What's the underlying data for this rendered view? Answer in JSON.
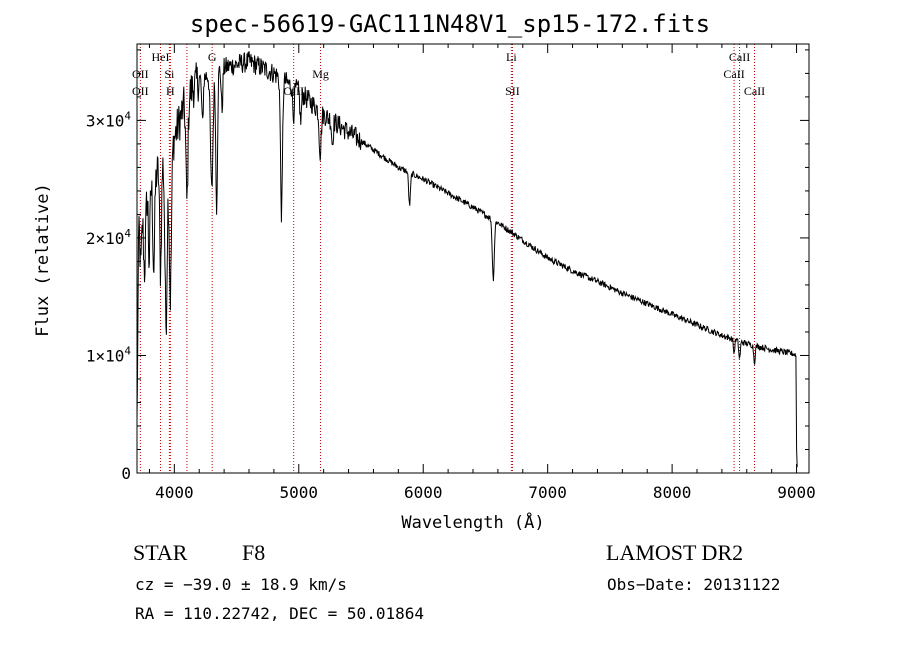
{
  "chart_data": {
    "type": "line",
    "title": "spec-56619-GAC111N48V1_sp15-172.fits",
    "xlabel": "Wavelength (Å)",
    "ylabel": "Flux (relative)",
    "xlim": [
      3700,
      9100
    ],
    "ylim": [
      0,
      36500
    ],
    "x_ticks": [
      4000,
      5000,
      6000,
      7000,
      8000,
      9000
    ],
    "x_tick_labels": [
      "4000",
      "5000",
      "6000",
      "7000",
      "8000",
      "9000"
    ],
    "y_ticks": [
      0,
      10000,
      20000,
      30000
    ],
    "y_tick_labels": [
      {
        "mant": "0",
        "exp": ""
      },
      {
        "mant": "1×10",
        "exp": "4"
      },
      {
        "mant": "2×10",
        "exp": "4"
      },
      {
        "mant": "3×10",
        "exp": "4"
      }
    ],
    "series": [
      {
        "name": "spectrum",
        "continuum": [
          [
            3700,
            22000
          ],
          [
            3800,
            24000
          ],
          [
            3900,
            26500
          ],
          [
            4000,
            28500
          ],
          [
            4100,
            32000
          ],
          [
            4200,
            33500
          ],
          [
            4400,
            34500
          ],
          [
            4600,
            35000
          ],
          [
            4800,
            34000
          ],
          [
            5000,
            32500
          ],
          [
            5200,
            30500
          ],
          [
            5400,
            29000
          ],
          [
            5600,
            27500
          ],
          [
            5800,
            26000
          ],
          [
            6000,
            25000
          ],
          [
            6200,
            23800
          ],
          [
            6400,
            22600
          ],
          [
            6600,
            21300
          ],
          [
            6800,
            19800
          ],
          [
            7000,
            18300
          ],
          [
            7200,
            17200
          ],
          [
            7400,
            16300
          ],
          [
            7600,
            15300
          ],
          [
            7800,
            14400
          ],
          [
            8000,
            13500
          ],
          [
            8200,
            12600
          ],
          [
            8400,
            11700
          ],
          [
            8600,
            11000
          ],
          [
            8800,
            10500
          ],
          [
            8990,
            10100
          ]
        ],
        "absorption_lines": [
          [
            3730,
            5000,
            8
          ],
          [
            3760,
            6000,
            8
          ],
          [
            3798,
            6000,
            6
          ],
          [
            3835,
            7500,
            7
          ],
          [
            3889,
            9000,
            7
          ],
          [
            3933,
            14500,
            9
          ],
          [
            3968,
            13000,
            9
          ],
          [
            4101,
            9000,
            8
          ],
          [
            4226,
            4000,
            6
          ],
          [
            4300,
            10000,
            10
          ],
          [
            4340,
            11500,
            7
          ],
          [
            4383,
            3500,
            6
          ],
          [
            4861,
            11500,
            8
          ],
          [
            4957,
            2500,
            6
          ],
          [
            5015,
            2500,
            6
          ],
          [
            5172,
            3500,
            8
          ],
          [
            5270,
            2000,
            6
          ],
          [
            5890,
            2800,
            7
          ],
          [
            6563,
            5000,
            8
          ],
          [
            8498,
            1200,
            5
          ],
          [
            8542,
            1500,
            6
          ],
          [
            8662,
            1400,
            6
          ]
        ],
        "end_drop": [
          [
            8995,
            10000
          ],
          [
            9000,
            2000
          ],
          [
            9005,
            500
          ]
        ]
      }
    ],
    "line_markers": [
      {
        "x": 3727,
        "label": "OII",
        "row": 2
      },
      {
        "x": 3727,
        "label": "OII",
        "row": 3
      },
      {
        "x": 3889,
        "label": "HeI",
        "row": 1
      },
      {
        "x": 3968,
        "label": "H",
        "row": 3
      },
      {
        "x": 3960,
        "label": "Si",
        "row": 2
      },
      {
        "x": 4101,
        "label": "",
        "row": 0
      },
      {
        "x": 4304,
        "label": "G",
        "row": 1
      },
      {
        "x": 4959,
        "label": "OIII",
        "row": 3
      },
      {
        "x": 5175,
        "label": "Mg",
        "row": 2
      },
      {
        "x": 6708,
        "label": "Li",
        "row": 1
      },
      {
        "x": 6717,
        "label": "SII",
        "row": 3
      },
      {
        "x": 8498,
        "label": "CaII",
        "row": 2
      },
      {
        "x": 8542,
        "label": "CaII",
        "row": 1
      },
      {
        "x": 8662,
        "label": "CaII",
        "row": 3
      }
    ]
  },
  "info": {
    "object_class": "STAR",
    "subclass": "F8",
    "survey": "LAMOST DR2",
    "redshift": "cz = −39.0 ± 18.9 km/s",
    "obs_date": "Obs−Date: 20131122",
    "coords": "RA = 110.22742, DEC =  50.01864"
  },
  "colors": {
    "line": "#000000",
    "marker": "#c00000"
  }
}
